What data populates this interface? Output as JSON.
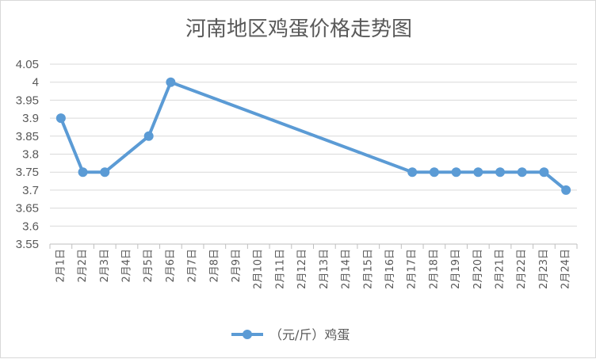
{
  "chart_data": {
    "type": "line",
    "title": "河南地区鸡蛋价格走势图",
    "xlabel": "",
    "ylabel": "",
    "ylim": [
      3.55,
      4.05
    ],
    "ytick_step": 0.05,
    "yticks": [
      "3.55",
      "3.6",
      "3.65",
      "3.7",
      "3.75",
      "3.8",
      "3.85",
      "3.9",
      "3.95",
      "4",
      "4.05"
    ],
    "categories": [
      "2月1日",
      "2月2日",
      "2月3日",
      "2月4日",
      "2月5日",
      "2月6日",
      "2月7日",
      "2月8日",
      "2月9日",
      "2月10日",
      "2月11日",
      "2月12日",
      "2月13日",
      "2月14日",
      "2月15日",
      "2月16日",
      "2月17日",
      "2月18日",
      "2月19日",
      "2月20日",
      "2月21日",
      "2月22日",
      "2月23日",
      "2月24日"
    ],
    "series": [
      {
        "name": "（元/斤）鸡蛋",
        "values": [
          3.9,
          3.75,
          3.75,
          null,
          3.85,
          4.0,
          null,
          null,
          null,
          null,
          null,
          null,
          null,
          null,
          null,
          null,
          3.75,
          3.75,
          3.75,
          3.75,
          3.75,
          3.75,
          3.75,
          3.7
        ]
      }
    ],
    "gaps": "connected",
    "grid": true,
    "legend": "bottom",
    "colors": {
      "series": "#5b9bd5",
      "grid": "#d9d9d9",
      "text": "#595959"
    }
  }
}
